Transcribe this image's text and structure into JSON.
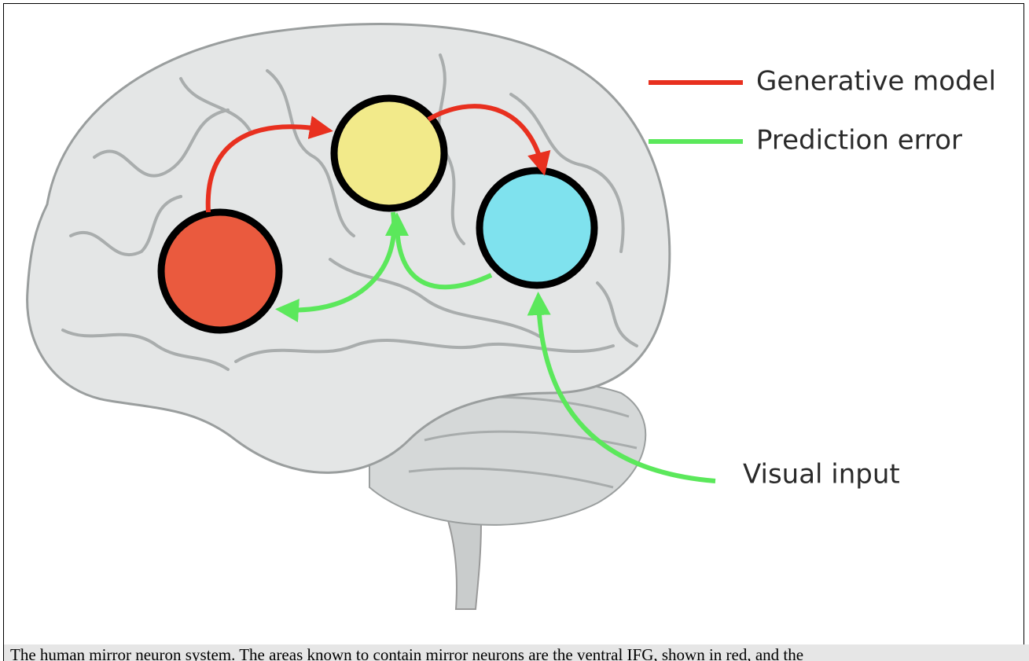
{
  "legend": [
    {
      "label": "Generative model"
    },
    {
      "label": "Prediction error"
    }
  ],
  "labels": {
    "visual_input": "Visual input"
  },
  "caption": "The human mirror neuron system. The areas known to contain mirror neurons are the ventral IFG, shown in red, and the"
}
